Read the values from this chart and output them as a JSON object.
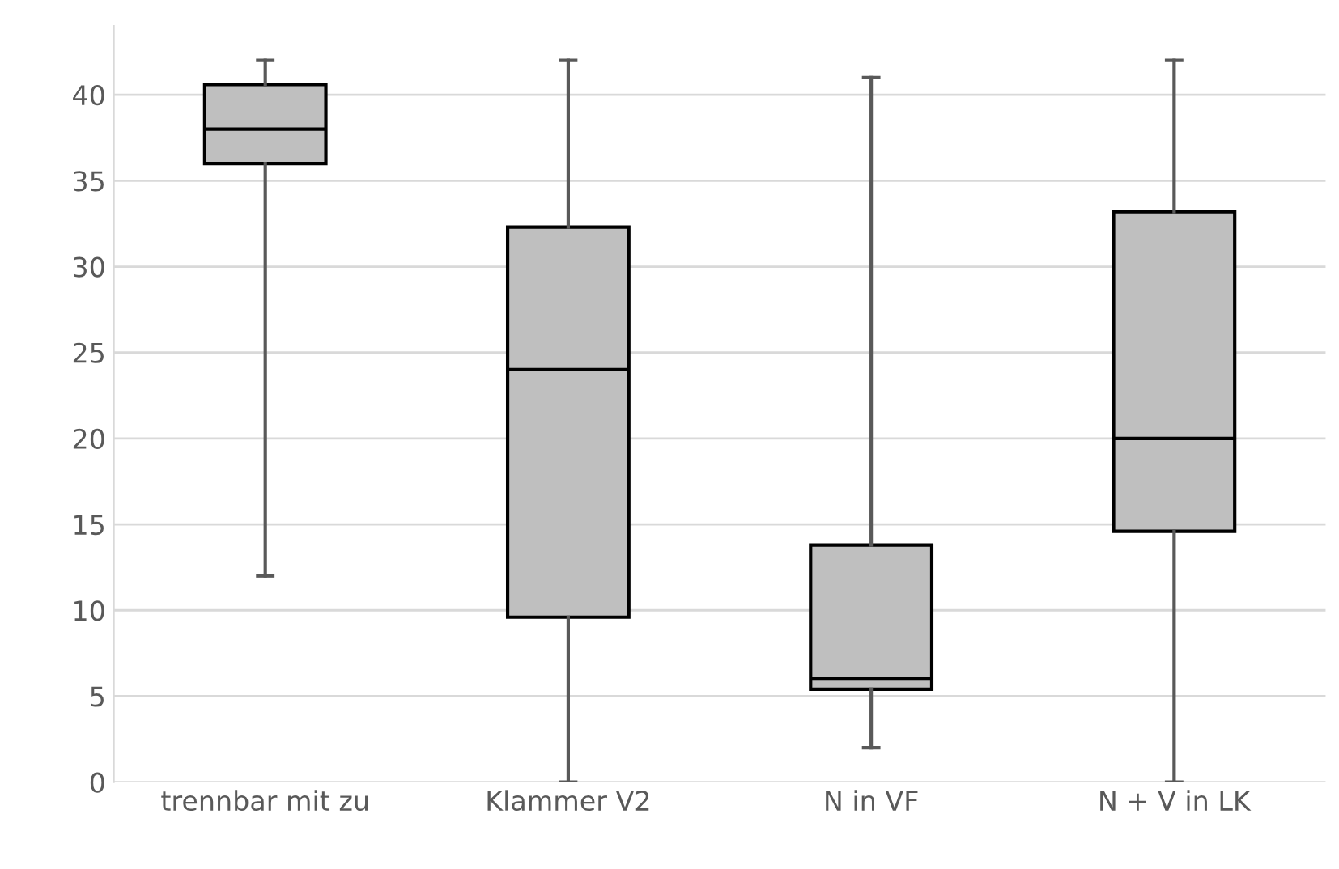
{
  "chart_data": {
    "type": "box",
    "categories": [
      "trennbar mit zu",
      "Klammer V2",
      "N in VF",
      "N + V in LK"
    ],
    "boxes": [
      {
        "low": 12,
        "q1": 36,
        "median": 38,
        "q3": 40.6,
        "high": 42
      },
      {
        "low": 0,
        "q1": 9.6,
        "median": 24,
        "q3": 32.3,
        "high": 42
      },
      {
        "low": 2,
        "q1": 5.4,
        "median": 6,
        "q3": 13.8,
        "high": 41
      },
      {
        "low": 0,
        "q1": 14.6,
        "median": 20,
        "q3": 33.2,
        "high": 42
      }
    ],
    "color": "#bfbfbf",
    "ylim": [
      0,
      44
    ],
    "yticks": [
      0,
      5,
      10,
      15,
      20,
      25,
      30,
      35,
      40
    ],
    "grid": "y"
  }
}
